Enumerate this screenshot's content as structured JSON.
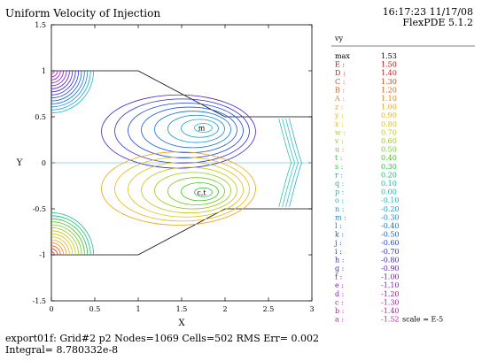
{
  "header": {
    "title": "Uniform Velocity of Injection",
    "timestamp": "16:17:23 11/17/08",
    "software": "FlexPDE 5.1.2"
  },
  "footer": {
    "line1": "export01f:  Grid#2  p2  Nodes=1069 Cells=502 RMS Err= 0.002",
    "line2": "Integral=  8.780332e-8"
  },
  "legend": {
    "variable": "vy",
    "scale_note": "scale = E-5",
    "entries": [
      {
        "key": "max",
        "value": "1.53",
        "color": "#000000"
      },
      {
        "key": "E :",
        "value": "1.50",
        "color": "#cc0000"
      },
      {
        "key": "D :",
        "value": "1.40",
        "color": "#d81818"
      },
      {
        "key": "C :",
        "value": "1.30",
        "color": "#e03c10"
      },
      {
        "key": "B :",
        "value": "1.20",
        "color": "#e86010"
      },
      {
        "key": "A :",
        "value": "1.10",
        "color": "#ee8010"
      },
      {
        "key": "z :",
        "value": "1.00",
        "color": "#f0a010"
      },
      {
        "key": "y :",
        "value": "0.90",
        "color": "#e8b810"
      },
      {
        "key": "x :",
        "value": "0.80",
        "color": "#d8c410"
      },
      {
        "key": "w :",
        "value": "0.70",
        "color": "#c0c810"
      },
      {
        "key": "v :",
        "value": "0.60",
        "color": "#98c810"
      },
      {
        "key": "u :",
        "value": "0.50",
        "color": "#70c818"
      },
      {
        "key": "t :",
        "value": "0.40",
        "color": "#40c020"
      },
      {
        "key": "s :",
        "value": "0.30",
        "color": "#20c040"
      },
      {
        "key": "r :",
        "value": "0.20",
        "color": "#10c068"
      },
      {
        "key": "q :",
        "value": "0.10",
        "color": "#10c090"
      },
      {
        "key": "p :",
        "value": "0.00",
        "color": "#10c0b0"
      },
      {
        "key": "o :",
        "value": "-0.10",
        "color": "#10b8c8"
      },
      {
        "key": "n :",
        "value": "-0.20",
        "color": "#10a0d0"
      },
      {
        "key": "m :",
        "value": "-0.30",
        "color": "#1088d8"
      },
      {
        "key": "l :",
        "value": "-0.40",
        "color": "#1070e0"
      },
      {
        "key": "k :",
        "value": "-0.50",
        "color": "#1058e0"
      },
      {
        "key": "j :",
        "value": "-0.60",
        "color": "#1840e0"
      },
      {
        "key": "i :",
        "value": "-0.70",
        "color": "#2828e0"
      },
      {
        "key": "h :",
        "value": "-0.80",
        "color": "#4020e0"
      },
      {
        "key": "g :",
        "value": "-0.90",
        "color": "#5818e0"
      },
      {
        "key": "f :",
        "value": "-1.00",
        "color": "#7010d8"
      },
      {
        "key": "e :",
        "value": "-1.10",
        "color": "#8810d0"
      },
      {
        "key": "d :",
        "value": "-1.20",
        "color": "#a010c8"
      },
      {
        "key": "c :",
        "value": "-1.30",
        "color": "#b010c0"
      },
      {
        "key": "b :",
        "value": "-1.40",
        "color": "#c010b8"
      },
      {
        "key": "a :",
        "value": "-1.52",
        "color": "#cc10b0"
      }
    ]
  },
  "chart_data": {
    "type": "contour",
    "title": "Uniform Velocity of Injection",
    "xlabel": "X",
    "ylabel": "Y",
    "xlim": [
      0,
      3
    ],
    "ylim": [
      -1.5,
      1.5
    ],
    "xticks": [
      "0",
      "0.5",
      "1",
      "1.5",
      "2",
      "2.5",
      "3"
    ],
    "yticks": [
      "1.5",
      "1",
      "0.5",
      "0",
      "-0.5",
      "-1",
      "-1.5"
    ],
    "domain_outline": [
      [
        0,
        1
      ],
      [
        1,
        1
      ],
      [
        2,
        0.5
      ],
      [
        3,
        0.5
      ],
      [
        3,
        -0.5
      ],
      [
        2,
        -0.5
      ],
      [
        1,
        -1
      ],
      [
        0,
        -1
      ]
    ],
    "vortices": [
      {
        "cx": 1.75,
        "cy": 0.38,
        "label": "m"
      },
      {
        "cx": 1.75,
        "cy": -0.32,
        "label": "c,t"
      }
    ],
    "grid": false
  }
}
